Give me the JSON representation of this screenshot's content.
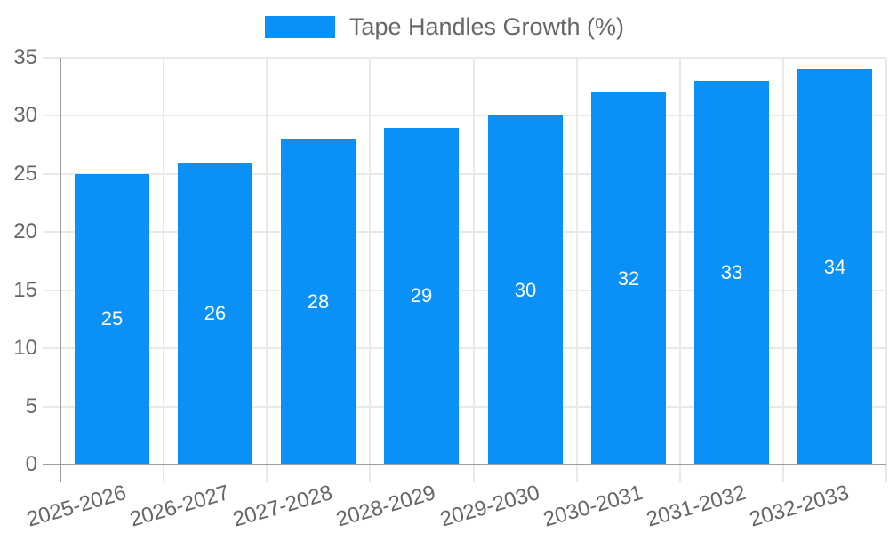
{
  "chart_data": {
    "type": "bar",
    "title": "Tape Handles Growth (%)",
    "categories": [
      "2025-2026",
      "2026-2027",
      "2027-2028",
      "2028-2029",
      "2029-2030",
      "2030-2031",
      "2031-2032",
      "2032-2033"
    ],
    "series": [
      {
        "name": "Tape Handles Growth (%)",
        "values": [
          25,
          26,
          28,
          29,
          30,
          32,
          33,
          34
        ]
      }
    ],
    "data_labels": [
      "25",
      "26",
      "28",
      "29",
      "30",
      "32",
      "33",
      "34"
    ],
    "xlabel": "",
    "ylabel": "",
    "ylim": [
      0,
      35
    ],
    "yticks": [
      0,
      5,
      10,
      15,
      20,
      25,
      30,
      35
    ],
    "grid": true,
    "legend_position": "top",
    "value_label_position": "inside-center",
    "x_tick_rotation_deg": -16,
    "colors": {
      "bar": "#0991f7",
      "value_label": "#ffffff",
      "axis_text": "#666666",
      "grid_line": "#e9e9e9",
      "axis_line": "#9d9d9d",
      "background": "#ffffff"
    }
  }
}
